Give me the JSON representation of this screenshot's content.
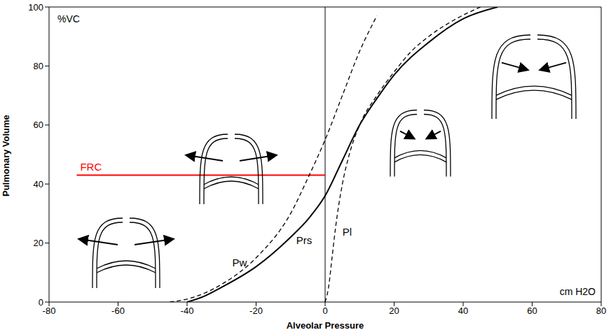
{
  "chart_data": {
    "type": "line",
    "x_label": "Alveolar Pressure",
    "y_label": "Pulmonary Volume",
    "y_unit_label": "%VC",
    "x_unit_label": "cm H2O",
    "xlim": [
      -80,
      80
    ],
    "xticks": [
      -80,
      -60,
      -40,
      -20,
      0,
      20,
      40,
      60,
      80
    ],
    "ylim": [
      0,
      100
    ],
    "yticks": [
      0,
      20,
      40,
      60,
      80,
      100
    ],
    "grid": false,
    "series": [
      {
        "name": "Pw",
        "color": "#000000",
        "line_style": "dashed",
        "x": [
          -45,
          -40,
          -30,
          -20,
          -10,
          -5,
          0,
          5,
          10,
          15
        ],
        "values": [
          0,
          1,
          6,
          15,
          30,
          42,
          55,
          70,
          85,
          97
        ]
      },
      {
        "name": "Prs",
        "color": "#000000",
        "line_style": "solid",
        "x": [
          -40,
          -35,
          -30,
          -20,
          -10,
          -5,
          0,
          5,
          10,
          15,
          20,
          30,
          40,
          50
        ],
        "values": [
          0,
          2,
          5,
          12,
          22,
          28,
          36,
          48,
          60,
          69,
          77,
          88,
          96,
          100
        ]
      },
      {
        "name": "Pl",
        "color": "#000000",
        "line_style": "dashed",
        "x": [
          0,
          1,
          2,
          3,
          5,
          7,
          10,
          15,
          20,
          25,
          30,
          38,
          45
        ],
        "values": [
          0,
          5,
          15,
          25,
          40,
          50,
          60,
          70,
          78,
          85,
          90,
          96,
          100
        ]
      }
    ],
    "reference_lines": [
      {
        "x": 0,
        "color": "#000000"
      }
    ],
    "annotations": [
      {
        "text": "FRC",
        "y": 43,
        "x": [
          -72,
          0
        ],
        "color": "#ff0000"
      }
    ]
  }
}
